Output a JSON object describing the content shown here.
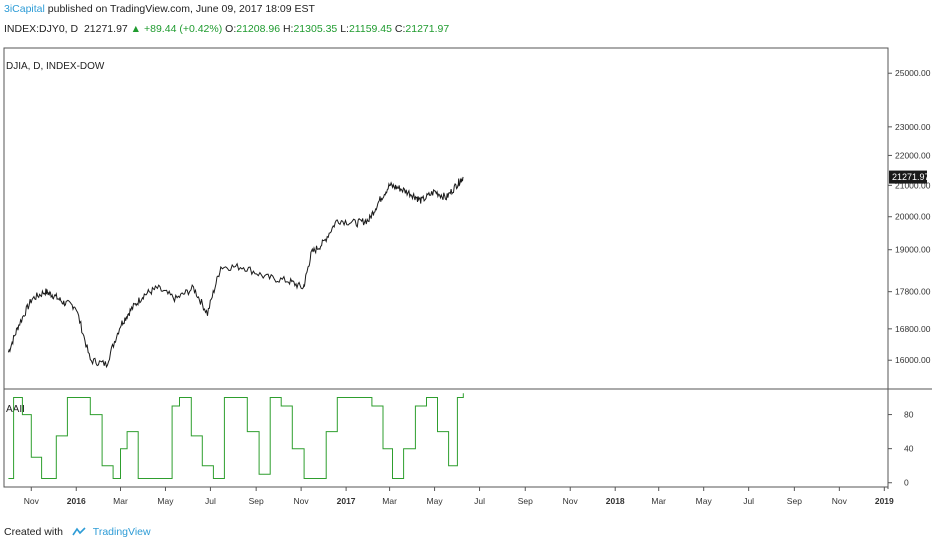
{
  "header": {
    "publisher": "3iCapital",
    "published_text": "published on TradingView.com, June 09, 2017 18:09 EST",
    "symbol": "INDEX:DJY0, D",
    "last": "21271.97",
    "change": "+89.44 (+0.42%)",
    "open_label": "O:",
    "open": "21208.96",
    "high_label": "H:",
    "high": "21305.35",
    "low_label": "L:",
    "low": "21159.45",
    "close_label": "C:",
    "close": "21271.97"
  },
  "footer": {
    "created_with": "Created with",
    "brand": "TradingView"
  },
  "colors": {
    "price": "#1a1a1a",
    "indicator": "#2e9e2e",
    "brand": "#2e9cd6",
    "up": "#1f9b2f",
    "last_bg": "#1a1a1a"
  },
  "chart_data": {
    "type": "line",
    "price_panel": {
      "title": "DJIA, D, INDEX-DOW",
      "y_scale": "log",
      "ylim": [
        15300,
        26000
      ],
      "y_ticks": [
        16000,
        16800,
        17800,
        19000,
        20000,
        21000,
        22000,
        23000,
        25000
      ],
      "y_tick_labels": [
        "16000.00",
        "16800.00",
        "17800.00",
        "19000.00",
        "20000.00",
        "21000.00",
        "22000.00",
        "23000.00",
        "25000.00"
      ],
      "last_value_label": "21271.97",
      "last_value": 21271.97,
      "series": [
        {
          "x": [
            "2015-10-01",
            "2015-10-15",
            "2015-11-02",
            "2015-11-20",
            "2015-12-01",
            "2015-12-15",
            "2015-12-31",
            "2016-01-20",
            "2016-02-11",
            "2016-03-01",
            "2016-03-15",
            "2016-04-01",
            "2016-04-20",
            "2016-05-15",
            "2016-06-08",
            "2016-06-27",
            "2016-07-15",
            "2016-08-15",
            "2016-09-15",
            "2016-10-15",
            "2016-11-04",
            "2016-11-15",
            "2016-12-01",
            "2016-12-20",
            "2017-01-15",
            "2017-02-01",
            "2017-02-15",
            "2017-03-01",
            "2017-03-15",
            "2017-04-01",
            "2017-04-13",
            "2017-05-01",
            "2017-05-17",
            "2017-06-01",
            "2017-06-09"
          ],
          "y": [
            16200,
            16900,
            17600,
            17800,
            17700,
            17500,
            17400,
            16000,
            15900,
            16900,
            17300,
            17700,
            17900,
            17600,
            17900,
            17200,
            18500,
            18500,
            18200,
            18100,
            17900,
            18900,
            19200,
            19900,
            19800,
            19900,
            20500,
            21000,
            20900,
            20700,
            20500,
            20800,
            20600,
            21050,
            21272
          ]
        }
      ]
    },
    "indicator_panel": {
      "name": "AAII",
      "ylim": [
        -5,
        110
      ],
      "y_ticks": [
        0,
        40,
        80
      ],
      "y_tick_labels": [
        "0",
        "40",
        "80"
      ],
      "series": [
        {
          "x": [
            "2015-10-01",
            "2015-10-08",
            "2015-10-20",
            "2015-11-01",
            "2015-11-15",
            "2015-11-25",
            "2015-12-05",
            "2015-12-20",
            "2016-01-05",
            "2016-01-20",
            "2016-02-05",
            "2016-02-20",
            "2016-03-01",
            "2016-03-10",
            "2016-03-25",
            "2016-04-10",
            "2016-04-25",
            "2016-05-10",
            "2016-05-20",
            "2016-06-05",
            "2016-06-20",
            "2016-07-05",
            "2016-07-20",
            "2016-08-05",
            "2016-08-20",
            "2016-09-05",
            "2016-09-20",
            "2016-10-05",
            "2016-10-20",
            "2016-11-05",
            "2016-11-20",
            "2016-12-05",
            "2016-12-20",
            "2017-01-05",
            "2017-01-20",
            "2017-02-05",
            "2017-02-20",
            "2017-03-05",
            "2017-03-20",
            "2017-04-05",
            "2017-04-20",
            "2017-05-05",
            "2017-05-20",
            "2017-06-01",
            "2017-06-09"
          ],
          "y": [
            5,
            100,
            80,
            30,
            5,
            5,
            55,
            100,
            100,
            80,
            20,
            5,
            40,
            60,
            5,
            5,
            5,
            90,
            100,
            55,
            20,
            5,
            100,
            100,
            60,
            10,
            100,
            90,
            40,
            5,
            5,
            60,
            100,
            100,
            100,
            90,
            40,
            5,
            40,
            90,
            100,
            60,
            20,
            100,
            105
          ]
        }
      ]
    },
    "x_axis": {
      "tick_labels": [
        "Nov",
        "2016",
        "Mar",
        "May",
        "Jul",
        "Sep",
        "Nov",
        "2017",
        "Mar",
        "May",
        "Jul",
        "Sep",
        "Nov",
        "2018",
        "Mar",
        "May",
        "Jul",
        "Sep",
        "Nov",
        "2019"
      ],
      "tick_dates": [
        "2015-11-01",
        "2016-01-01",
        "2016-03-01",
        "2016-05-01",
        "2016-07-01",
        "2016-09-01",
        "2016-11-01",
        "2017-01-01",
        "2017-03-01",
        "2017-05-01",
        "2017-07-01",
        "2017-09-01",
        "2017-11-01",
        "2018-01-01",
        "2018-03-01",
        "2018-05-01",
        "2018-07-01",
        "2018-09-01",
        "2018-11-01",
        "2019-01-01"
      ],
      "bold_labels": [
        "2016",
        "2017",
        "2018",
        "2019"
      ],
      "range": [
        "2015-09-25",
        "2019-01-06"
      ]
    },
    "grid": false
  }
}
